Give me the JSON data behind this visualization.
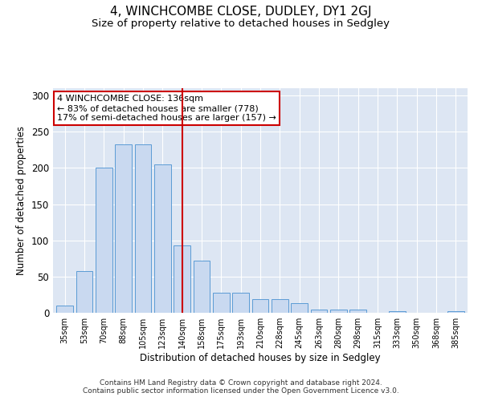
{
  "title": "4, WINCHCOMBE CLOSE, DUDLEY, DY1 2GJ",
  "subtitle": "Size of property relative to detached houses in Sedgley",
  "xlabel": "Distribution of detached houses by size in Sedgley",
  "ylabel": "Number of detached properties",
  "categories": [
    "35sqm",
    "53sqm",
    "70sqm",
    "88sqm",
    "105sqm",
    "123sqm",
    "140sqm",
    "158sqm",
    "175sqm",
    "193sqm",
    "210sqm",
    "228sqm",
    "245sqm",
    "263sqm",
    "280sqm",
    "298sqm",
    "315sqm",
    "333sqm",
    "350sqm",
    "368sqm",
    "385sqm"
  ],
  "values": [
    10,
    58,
    200,
    232,
    232,
    205,
    93,
    72,
    28,
    28,
    19,
    19,
    13,
    4,
    4,
    4,
    0,
    2,
    0,
    0,
    2
  ],
  "bar_color": "#c9d9f0",
  "bar_edge_color": "#5b9bd5",
  "vline_x_index": 6,
  "vline_color": "#cc0000",
  "annotation_text": "4 WINCHCOMBE CLOSE: 136sqm\n← 83% of detached houses are smaller (778)\n17% of semi-detached houses are larger (157) →",
  "annotation_box_color": "#ffffff",
  "annotation_box_edge": "#cc0000",
  "background_color": "#dde6f3",
  "footer_line1": "Contains HM Land Registry data © Crown copyright and database right 2024.",
  "footer_line2": "Contains public sector information licensed under the Open Government Licence v3.0.",
  "ylim": [
    0,
    310
  ],
  "title_fontsize": 11,
  "subtitle_fontsize": 9.5
}
